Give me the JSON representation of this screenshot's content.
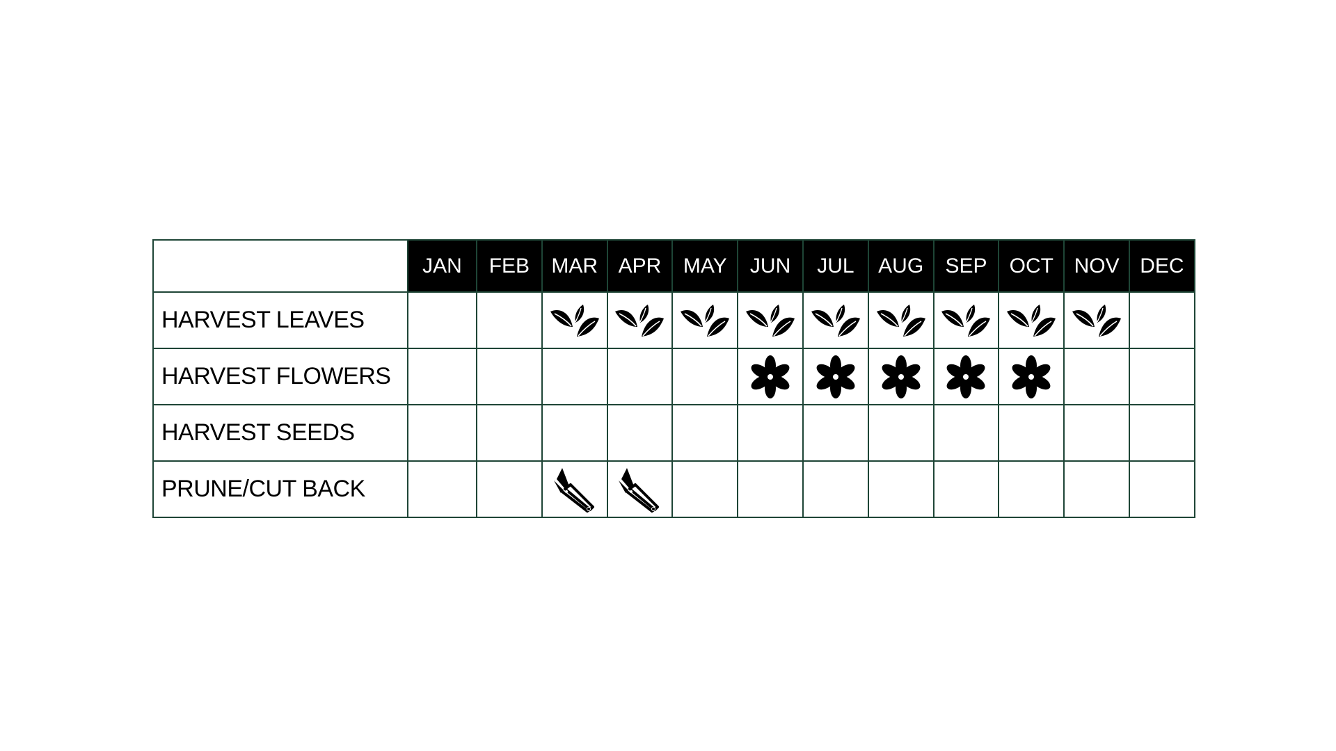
{
  "months": [
    "JAN",
    "FEB",
    "MAR",
    "APR",
    "MAY",
    "JUN",
    "JUL",
    "AUG",
    "SEP",
    "OCT",
    "NOV",
    "DEC"
  ],
  "rows": [
    {
      "label": "HARVEST LEAVES",
      "icon": "leaves-icon",
      "months": [
        "MAR",
        "APR",
        "MAY",
        "JUN",
        "JUL",
        "AUG",
        "SEP",
        "OCT",
        "NOV"
      ]
    },
    {
      "label": "HARVEST FLOWERS",
      "icon": "flower-icon",
      "months": [
        "JUN",
        "JUL",
        "AUG",
        "SEP",
        "OCT"
      ]
    },
    {
      "label": "HARVEST SEEDS",
      "icon": "",
      "months": []
    },
    {
      "label": "PRUNE/CUT BACK",
      "icon": "shears-icon",
      "months": [
        "MAR",
        "APR"
      ]
    }
  ],
  "colors": {
    "header_bg": "#000000",
    "header_text": "#ffffff",
    "grid": "#1e4536"
  }
}
